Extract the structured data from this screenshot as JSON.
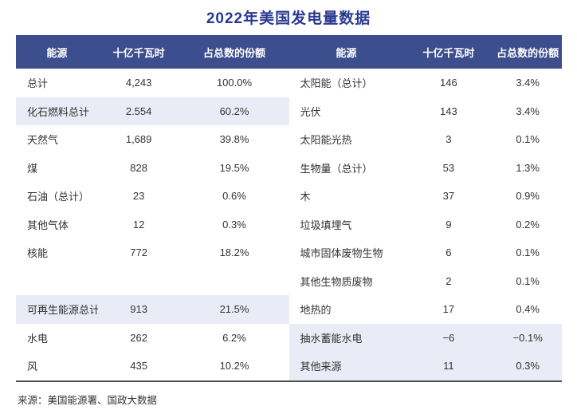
{
  "title": "2022年美国发电量数据",
  "source_note": "来源：美国能源署、国政大数据",
  "colors": {
    "title_text": "#2b3990",
    "header_bg": "#3c4e8d",
    "header_text": "#ffffff",
    "shaded_row_bg": "#e9ecf6",
    "body_text": "#333333",
    "bottom_border": "#4f4f4f"
  },
  "chart_data": {
    "type": "table",
    "title": "2022年美国发电量数据",
    "columns": [
      "能源",
      "十亿千瓦时",
      "占总数的份额"
    ],
    "left_rows": [
      {
        "label": "总计",
        "value": "4,243",
        "share": "100.0%"
      },
      {
        "label": "化石燃料总计",
        "value": "2.554",
        "share": "60.2%"
      },
      {
        "label": "天然气",
        "value": "1,689",
        "share": "39.8%"
      },
      {
        "label": "煤",
        "value": "828",
        "share": "19.5%"
      },
      {
        "label": "石油（总计）",
        "value": "23",
        "share": "0.6%"
      },
      {
        "label": "其他气体",
        "value": "12",
        "share": "0.3%"
      },
      {
        "label": "核能",
        "value": "772",
        "share": "18.2%"
      },
      {
        "label": "",
        "value": "",
        "share": ""
      },
      {
        "label": "可再生能源总计",
        "value": "913",
        "share": "21.5%"
      },
      {
        "label": "水电",
        "value": "262",
        "share": "6.2%"
      },
      {
        "label": "风",
        "value": "435",
        "share": "10.2%"
      }
    ],
    "right_rows": [
      {
        "label": "太阳能（总计）",
        "value": "146",
        "share": "3.4%"
      },
      {
        "label": "光伏",
        "value": "143",
        "share": "3.4%"
      },
      {
        "label": "太阳能光热",
        "value": "3",
        "share": "0.1%"
      },
      {
        "label": "生物量（总计）",
        "value": "53",
        "share": "1.3%"
      },
      {
        "label": "木",
        "value": "37",
        "share": "0.9%"
      },
      {
        "label": "垃圾填埋气",
        "value": "9",
        "share": "0.2%"
      },
      {
        "label": "城市固体废物生物",
        "value": "6",
        "share": "0.1%"
      },
      {
        "label": "其他生物质废物",
        "value": "2",
        "share": "0.1%"
      },
      {
        "label": "地热的",
        "value": "17",
        "share": "0.4%"
      },
      {
        "label": "抽水蓄能水电",
        "value": "−6",
        "share": "−0.1%"
      },
      {
        "label": "其他来源",
        "value": "11",
        "share": "0.3%"
      }
    ],
    "shaded_left_row_indexes": [
      1,
      8
    ],
    "shaded_right_row_indexes": [
      9,
      10
    ],
    "source": "来源：美国能源署、国政大数据"
  }
}
